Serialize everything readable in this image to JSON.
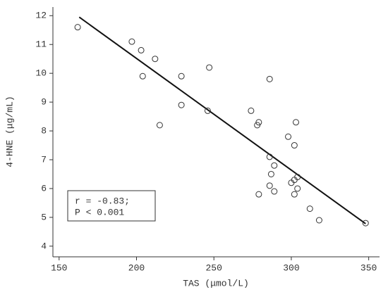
{
  "chart_data": {
    "type": "scatter",
    "xlabel": "TAS (μmol/L)",
    "ylabel": "4-HNE (μg/mL)",
    "annotation": [
      "r = -0.83;",
      "P < 0.001"
    ],
    "xlim": [
      146,
      357
    ],
    "ylim": [
      3.63,
      12.3
    ],
    "xticks": [
      150,
      200,
      250,
      300,
      350
    ],
    "yticks": [
      4,
      5,
      6,
      7,
      8,
      9,
      10,
      11,
      12
    ],
    "color": "#333333",
    "x": [
      162,
      197,
      203,
      212,
      204,
      229,
      247,
      229,
      215,
      246,
      274,
      286,
      279,
      278,
      303,
      298,
      302,
      286,
      289,
      287,
      304,
      302,
      300,
      286,
      304,
      289,
      279,
      302,
      312,
      318,
      348
    ],
    "values": [
      11.6,
      11.1,
      10.8,
      10.5,
      9.9,
      9.9,
      10.2,
      8.9,
      8.2,
      8.7,
      8.7,
      9.8,
      8.3,
      8.2,
      8.3,
      7.8,
      7.5,
      7.1,
      6.8,
      6.5,
      6.4,
      6.3,
      6.2,
      6.1,
      6.0,
      5.9,
      5.8,
      5.8,
      5.3,
      4.9,
      4.8
    ],
    "fit_line": {
      "x": [
        163,
        348
      ],
      "y": [
        11.95,
        4.78
      ]
    }
  }
}
